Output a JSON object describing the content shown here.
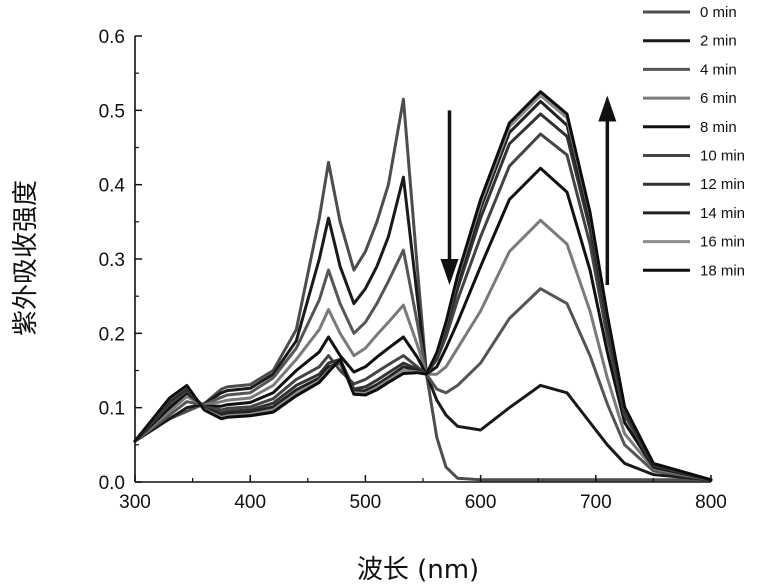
{
  "chart_data": {
    "type": "line",
    "title": "",
    "xlabel": "波长 (nm)",
    "ylabel": "紫外吸收强度",
    "xlim": [
      300,
      800
    ],
    "ylim": [
      0.0,
      0.6
    ],
    "xticks": [
      300,
      400,
      500,
      600,
      700,
      800
    ],
    "yticks": [
      0.0,
      0.1,
      0.2,
      0.3,
      0.4,
      0.5,
      0.6
    ],
    "xtick_labels": [
      "300",
      "400",
      "500",
      "600",
      "700",
      "800"
    ],
    "ytick_labels": [
      "0.0",
      "0.1",
      "0.2",
      "0.3",
      "0.4",
      "0.5",
      "0.6"
    ],
    "legend_position": "top-right",
    "annotations": [
      {
        "type": "arrow",
        "direction": "down",
        "x": 573,
        "y_from": 0.5,
        "y_to": 0.265
      },
      {
        "type": "arrow",
        "direction": "up",
        "x": 710,
        "y_from": 0.265,
        "y_to": 0.52
      }
    ],
    "x": [
      300,
      330,
      345,
      360,
      375,
      380,
      400,
      420,
      440,
      460,
      468,
      478,
      490,
      500,
      510,
      520,
      533,
      545,
      553,
      562,
      570,
      580,
      600,
      625,
      652,
      675,
      695,
      710,
      725,
      750,
      800
    ],
    "series": [
      {
        "name": "0 min",
        "color": "#4d4d4d",
        "values": [
          0.055,
          0.085,
          0.095,
          0.105,
          0.125,
          0.128,
          0.131,
          0.15,
          0.205,
          0.355,
          0.43,
          0.35,
          0.285,
          0.31,
          0.35,
          0.4,
          0.515,
          0.29,
          0.145,
          0.06,
          0.02,
          0.005,
          0.003,
          0.003,
          0.003,
          0.003,
          0.003,
          0.003,
          0.003,
          0.003,
          0.003
        ]
      },
      {
        "name": "2 min",
        "color": "#1a1a1a",
        "values": [
          0.055,
          0.085,
          0.1,
          0.105,
          0.12,
          0.123,
          0.126,
          0.145,
          0.19,
          0.3,
          0.355,
          0.29,
          0.24,
          0.26,
          0.29,
          0.33,
          0.41,
          0.25,
          0.145,
          0.11,
          0.09,
          0.075,
          0.07,
          0.1,
          0.13,
          0.12,
          0.08,
          0.05,
          0.025,
          0.01,
          0.003
        ]
      },
      {
        "name": "4 min",
        "color": "#555555",
        "values": [
          0.055,
          0.09,
          0.108,
          0.104,
          0.114,
          0.117,
          0.12,
          0.14,
          0.18,
          0.245,
          0.285,
          0.24,
          0.2,
          0.215,
          0.24,
          0.27,
          0.312,
          0.215,
          0.145,
          0.125,
          0.12,
          0.13,
          0.16,
          0.22,
          0.26,
          0.24,
          0.17,
          0.105,
          0.05,
          0.015,
          0.003
        ]
      },
      {
        "name": "6 min",
        "color": "#7a7a7a",
        "values": [
          0.055,
          0.095,
          0.115,
          0.103,
          0.108,
          0.11,
          0.113,
          0.13,
          0.165,
          0.205,
          0.232,
          0.2,
          0.17,
          0.18,
          0.198,
          0.215,
          0.238,
          0.185,
          0.145,
          0.145,
          0.155,
          0.18,
          0.23,
          0.31,
          0.352,
          0.32,
          0.23,
          0.14,
          0.065,
          0.018,
          0.003
        ]
      },
      {
        "name": "8 min",
        "color": "#111111",
        "values": [
          0.055,
          0.1,
          0.12,
          0.102,
          0.102,
          0.104,
          0.107,
          0.12,
          0.15,
          0.175,
          0.195,
          0.17,
          0.148,
          0.155,
          0.168,
          0.18,
          0.195,
          0.168,
          0.145,
          0.155,
          0.18,
          0.215,
          0.29,
          0.38,
          0.422,
          0.39,
          0.285,
          0.175,
          0.08,
          0.02,
          0.003
        ]
      },
      {
        "name": "10 min",
        "color": "#444444",
        "values": [
          0.055,
          0.105,
          0.123,
          0.101,
          0.097,
          0.099,
          0.101,
          0.112,
          0.138,
          0.155,
          0.17,
          0.15,
          0.132,
          0.138,
          0.148,
          0.158,
          0.17,
          0.155,
          0.145,
          0.165,
          0.195,
          0.245,
          0.33,
          0.425,
          0.468,
          0.44,
          0.32,
          0.195,
          0.09,
          0.022,
          0.003
        ]
      },
      {
        "name": "12 min",
        "color": "#333333",
        "values": [
          0.055,
          0.108,
          0.125,
          0.1,
          0.093,
          0.095,
          0.097,
          0.106,
          0.13,
          0.145,
          0.16,
          0.165,
          0.125,
          0.128,
          0.137,
          0.147,
          0.16,
          0.152,
          0.145,
          0.168,
          0.205,
          0.26,
          0.355,
          0.455,
          0.495,
          0.465,
          0.34,
          0.21,
          0.095,
          0.023,
          0.003
        ]
      },
      {
        "name": "14 min",
        "color": "#222222",
        "values": [
          0.055,
          0.11,
          0.127,
          0.099,
          0.09,
          0.092,
          0.094,
          0.101,
          0.124,
          0.14,
          0.155,
          0.16,
          0.122,
          0.123,
          0.131,
          0.141,
          0.155,
          0.15,
          0.145,
          0.17,
          0.21,
          0.268,
          0.368,
          0.47,
          0.512,
          0.48,
          0.352,
          0.218,
          0.098,
          0.024,
          0.003
        ]
      },
      {
        "name": "16 min",
        "color": "#8a8a8a",
        "values": [
          0.055,
          0.112,
          0.129,
          0.098,
          0.087,
          0.089,
          0.091,
          0.097,
          0.119,
          0.136,
          0.15,
          0.163,
          0.12,
          0.119,
          0.127,
          0.137,
          0.15,
          0.148,
          0.145,
          0.172,
          0.213,
          0.275,
          0.375,
          0.478,
          0.52,
          0.49,
          0.36,
          0.223,
          0.1,
          0.025,
          0.003
        ]
      },
      {
        "name": "18 min",
        "color": "#0d0d0d",
        "values": [
          0.055,
          0.113,
          0.13,
          0.097,
          0.085,
          0.087,
          0.089,
          0.094,
          0.116,
          0.134,
          0.148,
          0.165,
          0.118,
          0.117,
          0.124,
          0.134,
          0.146,
          0.147,
          0.145,
          0.174,
          0.215,
          0.278,
          0.38,
          0.483,
          0.525,
          0.495,
          0.363,
          0.225,
          0.101,
          0.025,
          0.003
        ]
      }
    ]
  }
}
